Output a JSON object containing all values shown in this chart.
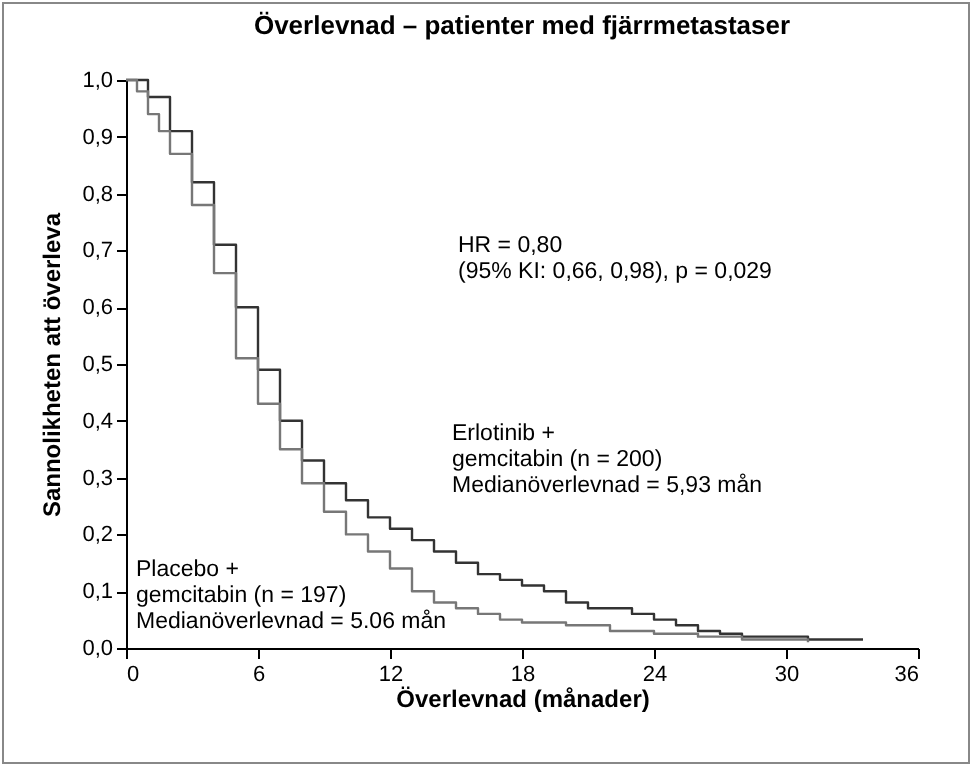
{
  "chart_data": {
    "type": "step",
    "title": "Överlevnad – patienter med fjärrmetastaser",
    "xlabel": "Överlevnad (månader)",
    "ylabel": "Sannolikheten att överleva",
    "xlim": [
      0,
      36
    ],
    "xticks": [
      0,
      6,
      12,
      18,
      24,
      30,
      36
    ],
    "ylim": [
      0,
      1
    ],
    "yticks": [
      {
        "value": 0,
        "label": "0,0"
      },
      {
        "value": 0.1,
        "label": "0,1"
      },
      {
        "value": 0.2,
        "label": "0,2"
      },
      {
        "value": 0.3,
        "label": "0,3"
      },
      {
        "value": 0.4,
        "label": "0,4"
      },
      {
        "value": 0.5,
        "label": "0,5"
      },
      {
        "value": 0.6,
        "label": "0,6"
      },
      {
        "value": 0.7,
        "label": "0,7"
      },
      {
        "value": 0.8,
        "label": "0,8"
      },
      {
        "value": 0.9,
        "label": "0,9"
      },
      {
        "value": 1,
        "label": "1,0"
      }
    ],
    "series": [
      {
        "color": "#333333",
        "x": [
          0,
          1,
          2,
          3,
          4,
          5,
          6,
          7,
          8,
          9,
          10,
          11,
          12,
          13,
          14,
          15,
          16,
          17,
          18,
          19,
          20,
          21,
          22,
          23,
          24,
          25,
          26,
          27,
          28,
          30,
          31,
          33.5
        ],
        "values": [
          1,
          0.97,
          0.91,
          0.82,
          0.71,
          0.6,
          0.49,
          0.4,
          0.33,
          0.29,
          0.26,
          0.23,
          0.21,
          0.19,
          0.17,
          0.15,
          0.13,
          0.12,
          0.11,
          0.1,
          0.08,
          0.07,
          0.07,
          0.06,
          0.05,
          0.04,
          0.03,
          0.025,
          0.02,
          0.02,
          0.015,
          0.015
        ]
      },
      {
        "color": "#777777",
        "x": [
          0,
          0.5,
          1,
          1.5,
          2,
          3,
          4,
          5,
          6,
          7,
          8,
          9,
          10,
          11,
          12,
          13,
          14,
          15,
          16,
          17,
          18,
          20,
          22,
          24,
          26,
          28,
          31
        ],
        "values": [
          1,
          0.98,
          0.94,
          0.91,
          0.87,
          0.78,
          0.66,
          0.51,
          0.43,
          0.35,
          0.29,
          0.24,
          0.2,
          0.17,
          0.14,
          0.1,
          0.08,
          0.07,
          0.06,
          0.05,
          0.045,
          0.04,
          0.03,
          0.025,
          0.02,
          0.015,
          0.01
        ]
      }
    ],
    "annotations": [
      "HR = 0,80\n(95% KI: 0,66, 0,98), p = 0,029",
      "Erlotinib +\n gemcitabin (n = 200)\n Medianöverlevnad = 5,93 mån",
      "Placebo +\ngemcitabin (n = 197)\nMedianöverlevnad = 5.06 mån"
    ]
  }
}
